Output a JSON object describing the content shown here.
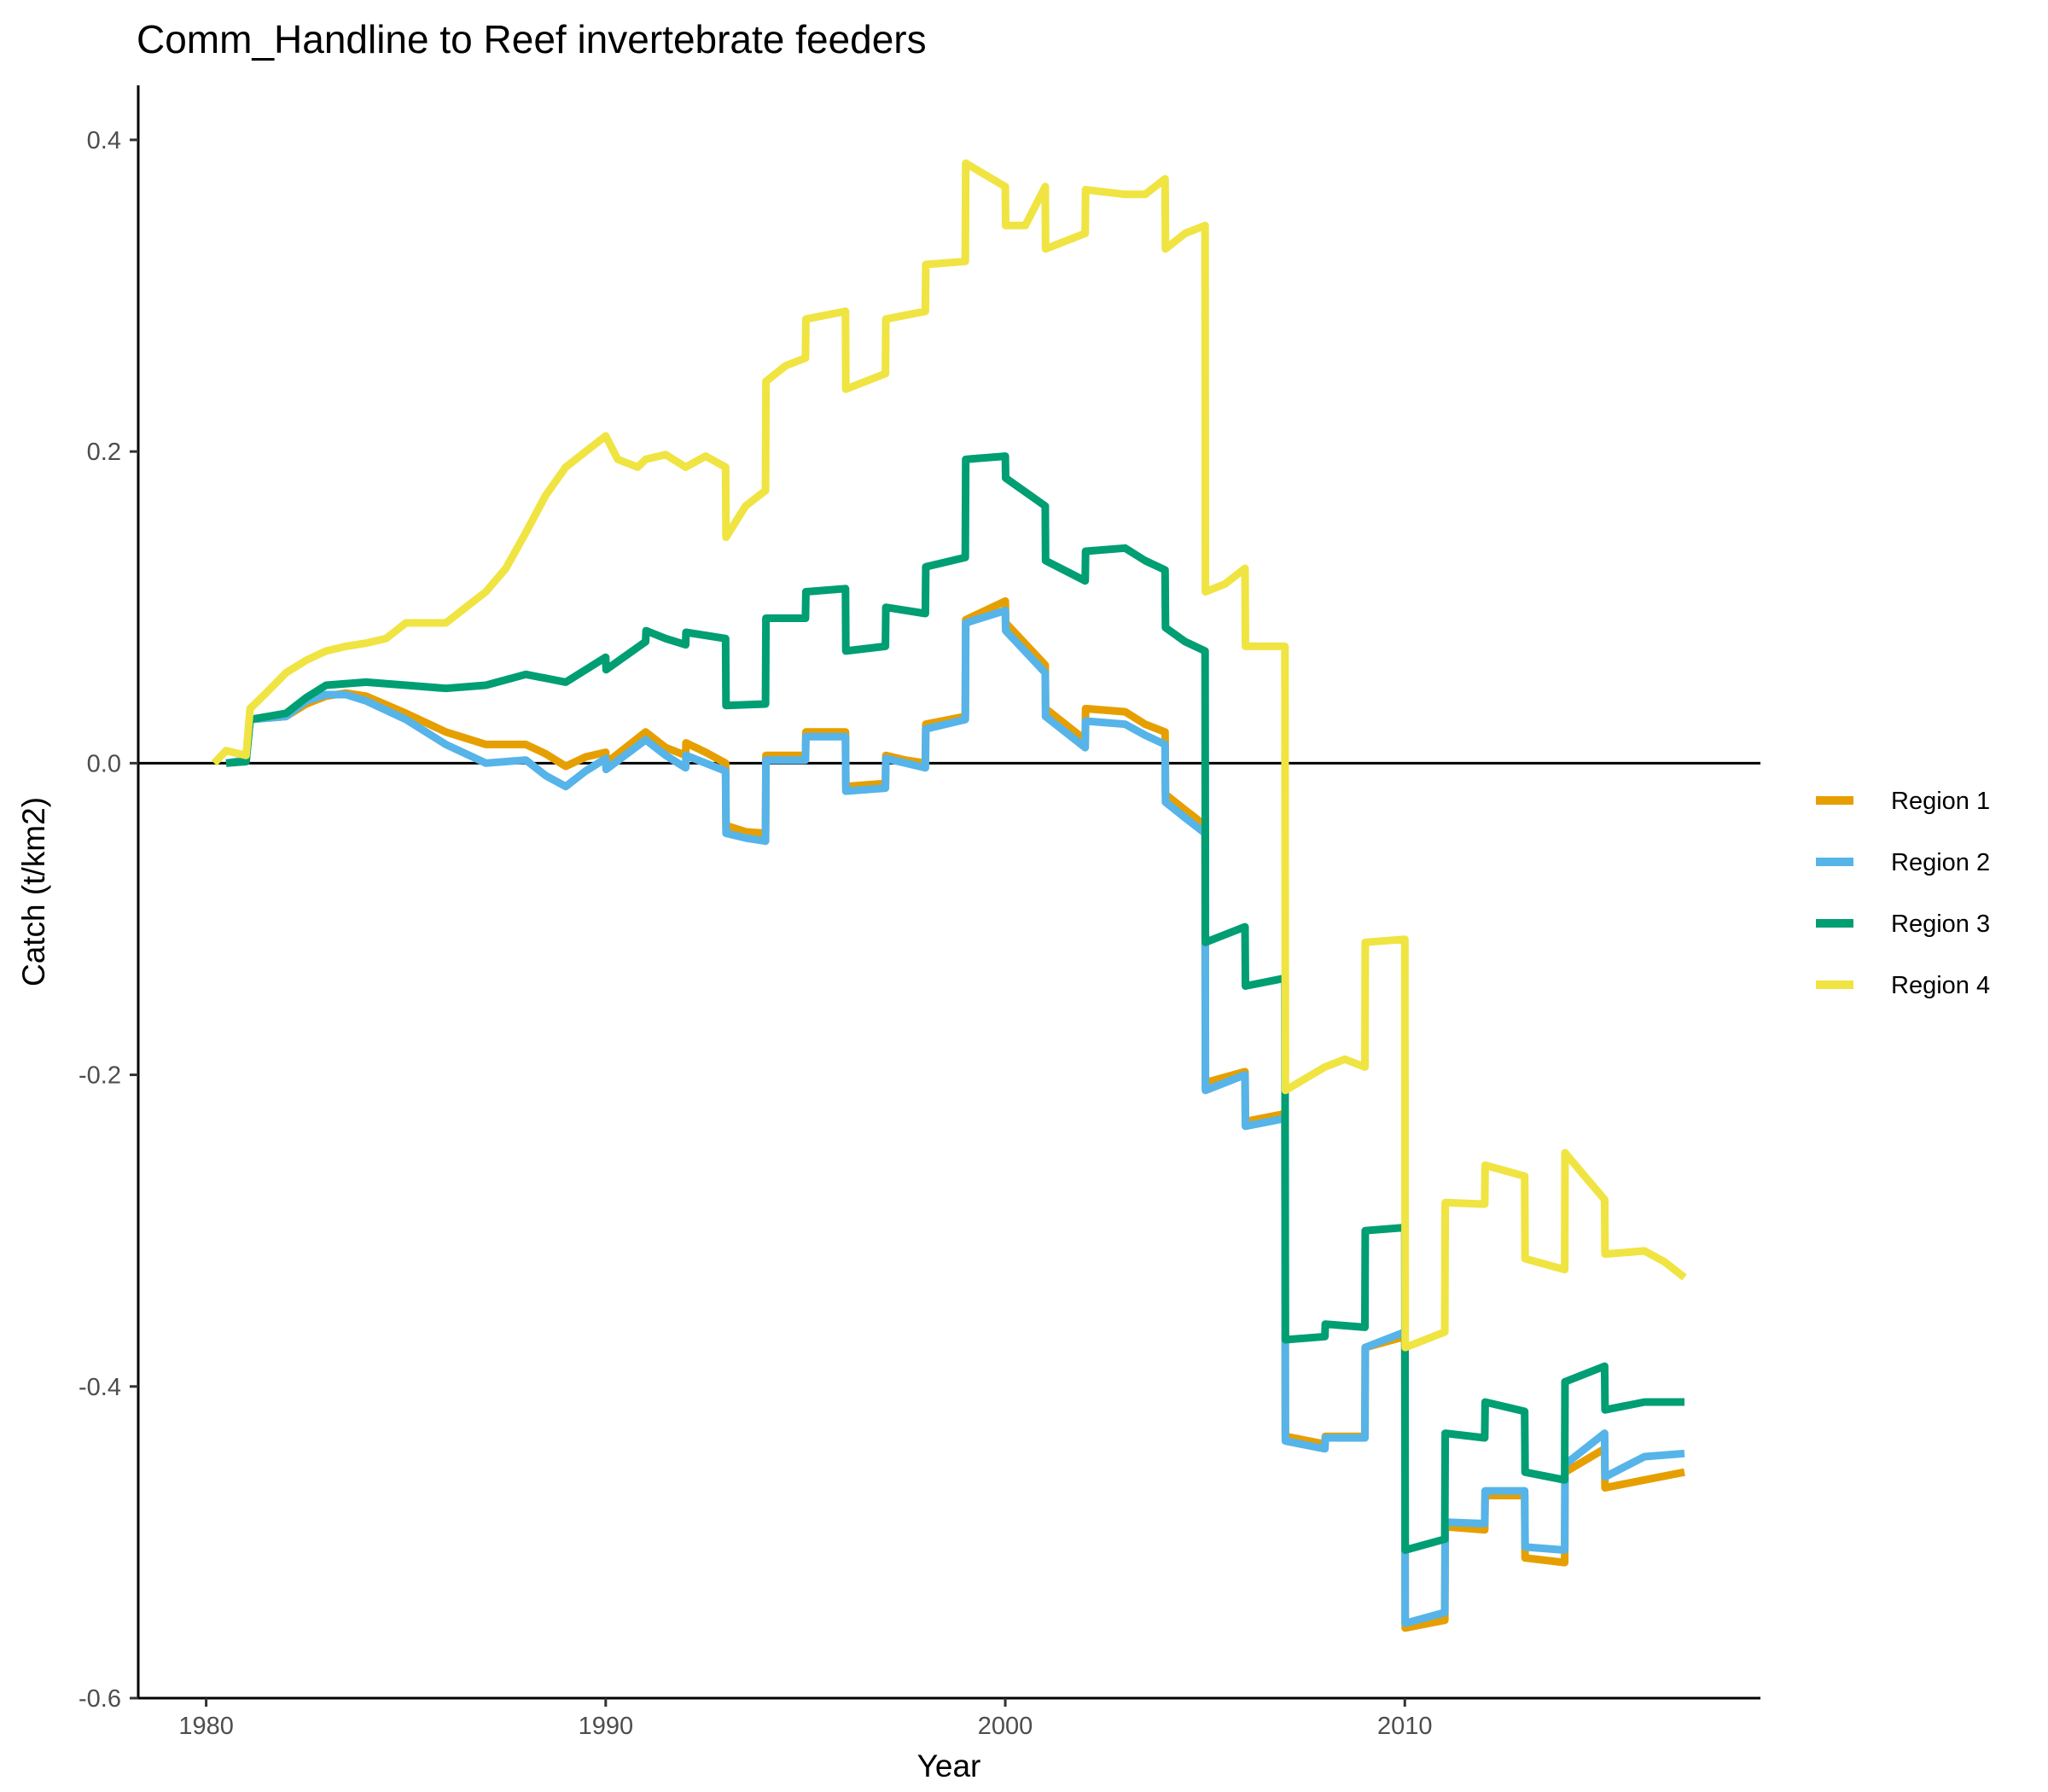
{
  "chart_data": {
    "type": "line",
    "title": "Comm_Handline to Reef invertebrate feeders",
    "xlabel": "Year",
    "ylabel": "Catch (t/km2)",
    "xlim": [
      1978.3,
      2018.9
    ],
    "ylim": [
      -0.6,
      0.435
    ],
    "x_ticks": [
      1980,
      1990,
      2000,
      2010
    ],
    "x_tick_labels": [
      "1980",
      "1990",
      "2000",
      "2010"
    ],
    "y_ticks": [
      0.4,
      0.2,
      0.0,
      -0.2,
      -0.4,
      -0.6
    ],
    "y_tick_labels": [
      "0.4",
      "0.2",
      "0.0",
      "-0.2",
      "-0.4",
      "-0.6"
    ],
    "zero_line": true,
    "grid": false,
    "legend_position": "right",
    "series": [
      {
        "name": "Region 1",
        "color": "#E69F00",
        "points": [
          [
            1980.5,
            0
          ],
          [
            1981,
            0.002
          ],
          [
            1981.1,
            0.028
          ],
          [
            1982,
            0.03
          ],
          [
            1982.5,
            0.038
          ],
          [
            1983,
            0.043
          ],
          [
            1983.5,
            0.045
          ],
          [
            1984,
            0.043
          ],
          [
            1985,
            0.032
          ],
          [
            1986,
            0.02
          ],
          [
            1987,
            0.012
          ],
          [
            1988,
            0.012
          ],
          [
            1988.5,
            0.006
          ],
          [
            1989,
            -0.002
          ],
          [
            1989.5,
            0.004
          ],
          [
            1990,
            0.007
          ],
          [
            1990.01,
            0.0
          ],
          [
            1991,
            0.02
          ],
          [
            1991.5,
            0.01
          ],
          [
            1992,
            0.005
          ],
          [
            1992.01,
            0.013
          ],
          [
            1992.5,
            0.007
          ],
          [
            1993,
            0.0
          ],
          [
            1993.01,
            -0.04
          ],
          [
            1993.5,
            -0.044
          ],
          [
            1994,
            -0.045
          ],
          [
            1994.01,
            0.005
          ],
          [
            1995,
            0.005
          ],
          [
            1995.01,
            0.02
          ],
          [
            1996,
            0.02
          ],
          [
            1996.01,
            -0.015
          ],
          [
            1997,
            -0.013
          ],
          [
            1997.01,
            0.005
          ],
          [
            1997.5,
            0.002
          ],
          [
            1998,
            0.0
          ],
          [
            1998.01,
            0.025
          ],
          [
            1999,
            0.03
          ],
          [
            1999.01,
            0.092
          ],
          [
            2000,
            0.104
          ],
          [
            2000.01,
            0.09
          ],
          [
            2001,
            0.063
          ],
          [
            2001.01,
            0.035
          ],
          [
            2002,
            0.015
          ],
          [
            2002.01,
            0.035
          ],
          [
            2003,
            0.033
          ],
          [
            2003.5,
            0.025
          ],
          [
            2004,
            0.02
          ],
          [
            2004.01,
            -0.02
          ],
          [
            2004.5,
            -0.03
          ],
          [
            2005,
            -0.04
          ],
          [
            2005.01,
            -0.205
          ],
          [
            2006,
            -0.198
          ],
          [
            2006.01,
            -0.23
          ],
          [
            2007,
            -0.225
          ],
          [
            2007.01,
            -0.432
          ],
          [
            2008,
            -0.437
          ],
          [
            2008.01,
            -0.432
          ],
          [
            2009,
            -0.432
          ],
          [
            2009.01,
            -0.375
          ],
          [
            2010,
            -0.368
          ],
          [
            2010.01,
            -0.555
          ],
          [
            2011,
            -0.55
          ],
          [
            2011.01,
            -0.49
          ],
          [
            2012,
            -0.492
          ],
          [
            2012.01,
            -0.47
          ],
          [
            2013,
            -0.47
          ],
          [
            2013.01,
            -0.51
          ],
          [
            2014,
            -0.513
          ],
          [
            2014.01,
            -0.455
          ],
          [
            2015,
            -0.44
          ],
          [
            2015.01,
            -0.465
          ],
          [
            2016,
            -0.46
          ],
          [
            2017,
            -0.455
          ]
        ]
      },
      {
        "name": "Region 2",
        "color": "#56B4E9",
        "points": [
          [
            1980.5,
            0
          ],
          [
            1981,
            0.002
          ],
          [
            1981.1,
            0.028
          ],
          [
            1982,
            0.03
          ],
          [
            1982.5,
            0.04
          ],
          [
            1983,
            0.044
          ],
          [
            1983.5,
            0.044
          ],
          [
            1984,
            0.04
          ],
          [
            1985,
            0.028
          ],
          [
            1986,
            0.012
          ],
          [
            1987,
            0.0
          ],
          [
            1988,
            0.002
          ],
          [
            1988.5,
            -0.008
          ],
          [
            1989,
            -0.015
          ],
          [
            1989.5,
            -0.005
          ],
          [
            1990,
            0.003
          ],
          [
            1990.01,
            -0.004
          ],
          [
            1991,
            0.015
          ],
          [
            1991.5,
            0.005
          ],
          [
            1992,
            -0.003
          ],
          [
            1992.01,
            0.005
          ],
          [
            1992.5,
            0.0
          ],
          [
            1993,
            -0.005
          ],
          [
            1993.01,
            -0.045
          ],
          [
            1993.5,
            -0.048
          ],
          [
            1994,
            -0.05
          ],
          [
            1994.01,
            0.002
          ],
          [
            1995,
            0.002
          ],
          [
            1995.01,
            0.017
          ],
          [
            1996,
            0.017
          ],
          [
            1996.01,
            -0.018
          ],
          [
            1997,
            -0.016
          ],
          [
            1997.01,
            0.003
          ],
          [
            1997.5,
            0.0
          ],
          [
            1998,
            -0.003
          ],
          [
            1998.01,
            0.022
          ],
          [
            1999,
            0.028
          ],
          [
            1999.01,
            0.09
          ],
          [
            2000,
            0.098
          ],
          [
            2000.01,
            0.085
          ],
          [
            2001,
            0.058
          ],
          [
            2001.01,
            0.03
          ],
          [
            2002,
            0.01
          ],
          [
            2002.01,
            0.027
          ],
          [
            2003,
            0.025
          ],
          [
            2003.5,
            0.018
          ],
          [
            2004,
            0.012
          ],
          [
            2004.01,
            -0.025
          ],
          [
            2004.5,
            -0.035
          ],
          [
            2005,
            -0.045
          ],
          [
            2005.01,
            -0.21
          ],
          [
            2006,
            -0.2
          ],
          [
            2006.01,
            -0.233
          ],
          [
            2007,
            -0.228
          ],
          [
            2007.01,
            -0.435
          ],
          [
            2008,
            -0.44
          ],
          [
            2008.01,
            -0.433
          ],
          [
            2009,
            -0.433
          ],
          [
            2009.01,
            -0.375
          ],
          [
            2010,
            -0.365
          ],
          [
            2010.01,
            -0.552
          ],
          [
            2011,
            -0.545
          ],
          [
            2011.01,
            -0.487
          ],
          [
            2012,
            -0.488
          ],
          [
            2012.01,
            -0.467
          ],
          [
            2013,
            -0.467
          ],
          [
            2013.01,
            -0.503
          ],
          [
            2014,
            -0.505
          ],
          [
            2014.01,
            -0.45
          ],
          [
            2015,
            -0.43
          ],
          [
            2015.01,
            -0.458
          ],
          [
            2016,
            -0.445
          ],
          [
            2017,
            -0.443
          ]
        ]
      },
      {
        "name": "Region 3",
        "color": "#009E73",
        "points": [
          [
            1980.5,
            0
          ],
          [
            1981,
            0.001
          ],
          [
            1981.1,
            0.028
          ],
          [
            1982,
            0.032
          ],
          [
            1982.5,
            0.042
          ],
          [
            1983,
            0.05
          ],
          [
            1984,
            0.052
          ],
          [
            1985,
            0.05
          ],
          [
            1986,
            0.048
          ],
          [
            1987,
            0.05
          ],
          [
            1988,
            0.057
          ],
          [
            1989,
            0.052
          ],
          [
            1990,
            0.068
          ],
          [
            1990.01,
            0.06
          ],
          [
            1991,
            0.078
          ],
          [
            1991.01,
            0.085
          ],
          [
            1991.5,
            0.08
          ],
          [
            1992,
            0.076
          ],
          [
            1992.01,
            0.084
          ],
          [
            1993,
            0.08
          ],
          [
            1993.01,
            0.037
          ],
          [
            1994,
            0.038
          ],
          [
            1994.01,
            0.093
          ],
          [
            1995,
            0.093
          ],
          [
            1995.01,
            0.11
          ],
          [
            1996,
            0.112
          ],
          [
            1996.01,
            0.072
          ],
          [
            1997,
            0.075
          ],
          [
            1997.01,
            0.1
          ],
          [
            1998,
            0.096
          ],
          [
            1998.01,
            0.126
          ],
          [
            1999,
            0.132
          ],
          [
            1999.01,
            0.195
          ],
          [
            2000,
            0.197
          ],
          [
            2000.01,
            0.183
          ],
          [
            2001,
            0.165
          ],
          [
            2001.01,
            0.13
          ],
          [
            2002,
            0.117
          ],
          [
            2002.01,
            0.136
          ],
          [
            2003,
            0.138
          ],
          [
            2003.5,
            0.13
          ],
          [
            2004,
            0.124
          ],
          [
            2004.01,
            0.087
          ],
          [
            2004.5,
            0.078
          ],
          [
            2005,
            0.072
          ],
          [
            2005.01,
            -0.115
          ],
          [
            2006,
            -0.105
          ],
          [
            2006.01,
            -0.143
          ],
          [
            2007,
            -0.138
          ],
          [
            2007.01,
            -0.37
          ],
          [
            2008,
            -0.368
          ],
          [
            2008.01,
            -0.36
          ],
          [
            2009,
            -0.362
          ],
          [
            2009.01,
            -0.3
          ],
          [
            2010,
            -0.298
          ],
          [
            2010.01,
            -0.505
          ],
          [
            2011,
            -0.498
          ],
          [
            2011.01,
            -0.43
          ],
          [
            2012,
            -0.433
          ],
          [
            2012.01,
            -0.41
          ],
          [
            2013,
            -0.416
          ],
          [
            2013.01,
            -0.455
          ],
          [
            2014,
            -0.46
          ],
          [
            2014.01,
            -0.397
          ],
          [
            2015,
            -0.387
          ],
          [
            2015.01,
            -0.415
          ],
          [
            2016,
            -0.41
          ],
          [
            2017,
            -0.41
          ]
        ]
      },
      {
        "name": "Region 4",
        "color": "#F0E442",
        "points": [
          [
            1980.2,
            0
          ],
          [
            1980.5,
            0.008
          ],
          [
            1981,
            0.005
          ],
          [
            1981.1,
            0.035
          ],
          [
            1981.5,
            0.045
          ],
          [
            1982,
            0.058
          ],
          [
            1982.5,
            0.066
          ],
          [
            1983,
            0.072
          ],
          [
            1983.5,
            0.075
          ],
          [
            1984,
            0.077
          ],
          [
            1984.5,
            0.08
          ],
          [
            1985,
            0.09
          ],
          [
            1985.5,
            0.09
          ],
          [
            1986,
            0.09
          ],
          [
            1986.5,
            0.1
          ],
          [
            1987,
            0.11
          ],
          [
            1987.5,
            0.125
          ],
          [
            1988,
            0.148
          ],
          [
            1988.5,
            0.172
          ],
          [
            1989,
            0.19
          ],
          [
            1989.5,
            0.2
          ],
          [
            1990,
            0.21
          ],
          [
            1990.3,
            0.195
          ],
          [
            1990.8,
            0.19
          ],
          [
            1991,
            0.195
          ],
          [
            1991.5,
            0.198
          ],
          [
            1992,
            0.19
          ],
          [
            1992.5,
            0.197
          ],
          [
            1993,
            0.19
          ],
          [
            1993.01,
            0.145
          ],
          [
            1993.5,
            0.165
          ],
          [
            1994,
            0.175
          ],
          [
            1994.01,
            0.245
          ],
          [
            1994.5,
            0.255
          ],
          [
            1995,
            0.26
          ],
          [
            1995.01,
            0.285
          ],
          [
            1996,
            0.29
          ],
          [
            1996.01,
            0.24
          ],
          [
            1997,
            0.25
          ],
          [
            1997.01,
            0.285
          ],
          [
            1998,
            0.29
          ],
          [
            1998.01,
            0.32
          ],
          [
            1999,
            0.322
          ],
          [
            1999.01,
            0.385
          ],
          [
            2000,
            0.37
          ],
          [
            2000.01,
            0.345
          ],
          [
            2000.5,
            0.345
          ],
          [
            2001,
            0.37
          ],
          [
            2001.01,
            0.33
          ],
          [
            2002,
            0.34
          ],
          [
            2002.01,
            0.368
          ],
          [
            2003,
            0.365
          ],
          [
            2003.5,
            0.365
          ],
          [
            2004,
            0.375
          ],
          [
            2004.01,
            0.33
          ],
          [
            2004.5,
            0.34
          ],
          [
            2005,
            0.345
          ],
          [
            2005.01,
            0.11
          ],
          [
            2005.5,
            0.115
          ],
          [
            2006,
            0.125
          ],
          [
            2006.01,
            0.075
          ],
          [
            2007,
            0.075
          ],
          [
            2007.01,
            -0.21
          ],
          [
            2008,
            -0.195
          ],
          [
            2008.5,
            -0.19
          ],
          [
            2009,
            -0.195
          ],
          [
            2009.01,
            -0.115
          ],
          [
            2010,
            -0.113
          ],
          [
            2010.01,
            -0.375
          ],
          [
            2011,
            -0.365
          ],
          [
            2011.01,
            -0.282
          ],
          [
            2012,
            -0.283
          ],
          [
            2012.01,
            -0.258
          ],
          [
            2013,
            -0.265
          ],
          [
            2013.01,
            -0.318
          ],
          [
            2014,
            -0.325
          ],
          [
            2014.01,
            -0.25
          ],
          [
            2014.5,
            -0.265
          ],
          [
            2015,
            -0.28
          ],
          [
            2015.01,
            -0.315
          ],
          [
            2016,
            -0.313
          ],
          [
            2016.5,
            -0.32
          ],
          [
            2017,
            -0.33
          ]
        ]
      }
    ]
  }
}
